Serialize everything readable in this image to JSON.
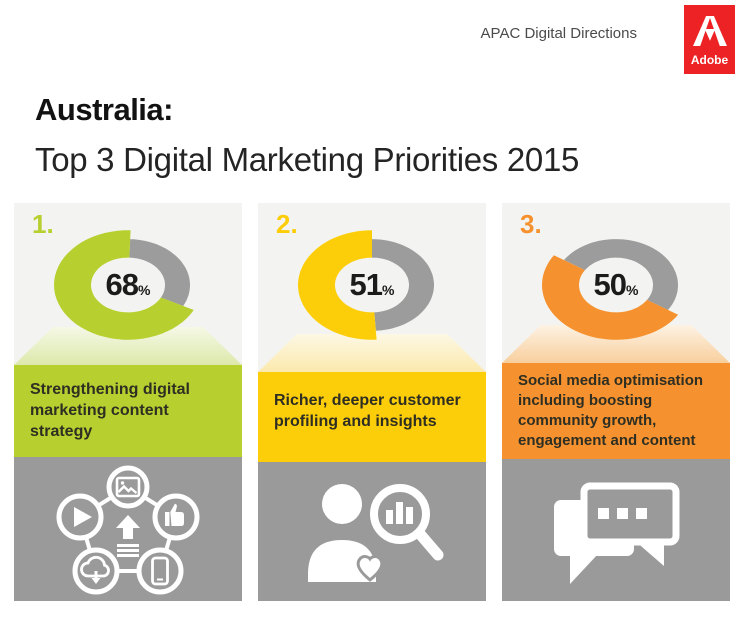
{
  "header": {
    "program": "APAC Digital Directions",
    "logo_text": "Adobe",
    "logo_color": "#ED2224"
  },
  "title": {
    "line1": "Australia:",
    "line2": "Top 3 Digital Marketing Priorities 2015"
  },
  "colors": {
    "panel_bg": "#f3f3f1",
    "icon_panel_bg": "#9a9a9a",
    "donut_track": "#9c9c9c",
    "percent_text": "#1b1b1b"
  },
  "chart_data": [
    {
      "type": "pie",
      "donut": true,
      "title": "Strengthening digital marketing content strategy",
      "labels": [
        "priority",
        "remainder"
      ],
      "values": [
        68,
        32
      ],
      "percent": 68,
      "color": "#b8d02f",
      "track_color": "#9c9c9c",
      "rotation_deg": 2,
      "legend_position": "none"
    },
    {
      "type": "pie",
      "donut": true,
      "title": "Richer, deeper customer profiling and insights",
      "labels": [
        "priority",
        "remainder"
      ],
      "values": [
        51,
        49
      ],
      "percent": 51,
      "color": "#fcce0a",
      "track_color": "#9c9c9c",
      "rotation_deg": 0,
      "legend_position": "none"
    },
    {
      "type": "pie",
      "donut": true,
      "title": "Social media optimisation including boosting community growth, engagement and content",
      "labels": [
        "priority",
        "remainder"
      ],
      "values": [
        50,
        50
      ],
      "percent": 50,
      "color": "#f5922f",
      "track_color": "#9c9c9c",
      "rotation_deg": -57,
      "legend_position": "none"
    }
  ],
  "columns": [
    {
      "rank": "1.",
      "percent": "68",
      "percent_symbol": "%",
      "label": "Strengthening digital marketing content strategy",
      "accent": "#b8d02f",
      "pedestal_top": "#f5f8e6",
      "pedestal_bottom": "#dde9ab",
      "icons": [
        "image-icon",
        "thumbs-up-icon",
        "smartphone-icon",
        "cloud-download-icon",
        "play-icon",
        "upload-content-icon"
      ]
    },
    {
      "rank": "2.",
      "percent": "51",
      "percent_symbol": "%",
      "label": "Richer, deeper customer profiling and insights",
      "accent": "#fcce0a",
      "pedestal_top": "#fdf8e4",
      "pedestal_bottom": "#fbe9ad",
      "icons": [
        "person-icon",
        "heart-icon",
        "magnifier-bar-chart-icon"
      ]
    },
    {
      "rank": "3.",
      "percent": "50",
      "percent_symbol": "%",
      "label": "Social media optimisation including boosting community growth, engagement and content",
      "accent": "#f5922f",
      "pedestal_top": "#fdf2e3",
      "pedestal_bottom": "#f8cf9d",
      "icons": [
        "chat-bubbles-icon"
      ]
    }
  ]
}
